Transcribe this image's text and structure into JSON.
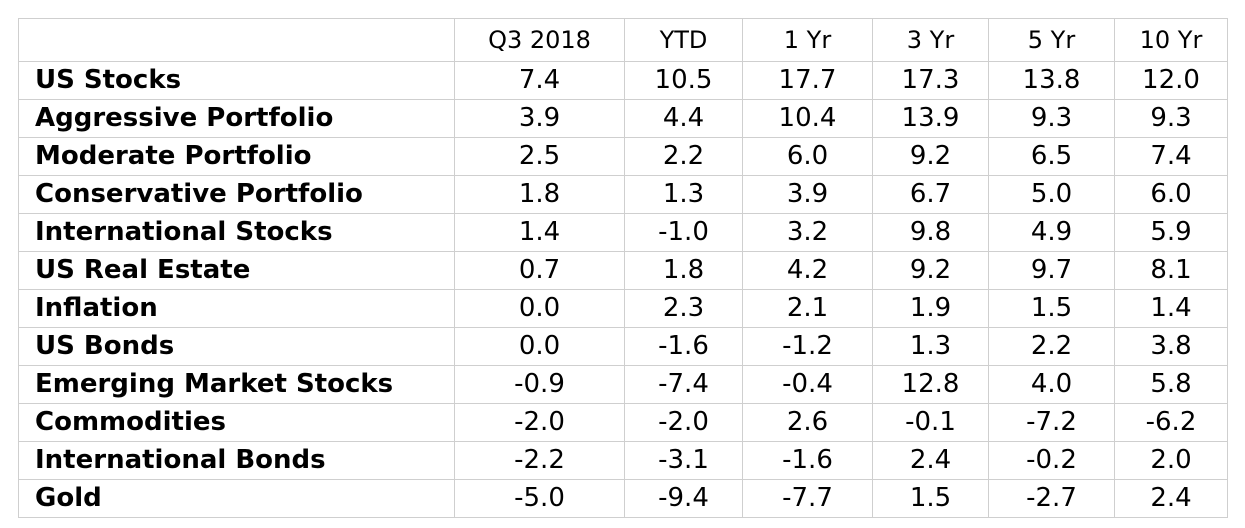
{
  "table": {
    "corner": "",
    "headers": [
      "Q3 2018",
      "YTD",
      "1 Yr",
      "3 Yr",
      "5 Yr",
      "10 Yr"
    ],
    "rows": [
      {
        "label": "US Stocks",
        "values": [
          "7.4",
          "10.5",
          "17.7",
          "17.3",
          "13.8",
          "12.0"
        ]
      },
      {
        "label": "Aggressive Portfolio",
        "values": [
          "3.9",
          "4.4",
          "10.4",
          "13.9",
          "9.3",
          "9.3"
        ]
      },
      {
        "label": "Moderate Portfolio",
        "values": [
          "2.5",
          "2.2",
          "6.0",
          "9.2",
          "6.5",
          "7.4"
        ]
      },
      {
        "label": "Conservative Portfolio",
        "values": [
          "1.8",
          "1.3",
          "3.9",
          "6.7",
          "5.0",
          "6.0"
        ]
      },
      {
        "label": "International Stocks",
        "values": [
          "1.4",
          "-1.0",
          "3.2",
          "9.8",
          "4.9",
          "5.9"
        ]
      },
      {
        "label": "US Real Estate",
        "values": [
          "0.7",
          "1.8",
          "4.2",
          "9.2",
          "9.7",
          "8.1"
        ]
      },
      {
        "label": "Inflation",
        "values": [
          "0.0",
          "2.3",
          "2.1",
          "1.9",
          "1.5",
          "1.4"
        ]
      },
      {
        "label": "US Bonds",
        "values": [
          "0.0",
          "-1.6",
          "-1.2",
          "1.3",
          "2.2",
          "3.8"
        ]
      },
      {
        "label": "Emerging Market Stocks",
        "values": [
          "-0.9",
          "-7.4",
          "-0.4",
          "12.8",
          "4.0",
          "5.8"
        ]
      },
      {
        "label": "Commodities",
        "values": [
          "-2.0",
          "-2.0",
          "2.6",
          "-0.1",
          "-7.2",
          "-6.2"
        ]
      },
      {
        "label": "International Bonds",
        "values": [
          "-2.2",
          "-3.1",
          "-1.6",
          "2.4",
          "-0.2",
          "2.0"
        ]
      },
      {
        "label": "Gold",
        "values": [
          "-5.0",
          "-9.4",
          "-7.7",
          "1.5",
          "-2.7",
          "2.4"
        ]
      }
    ]
  },
  "colors": {
    "text": "#000000",
    "grid": "#cfcfcf",
    "background": "#ffffff"
  }
}
